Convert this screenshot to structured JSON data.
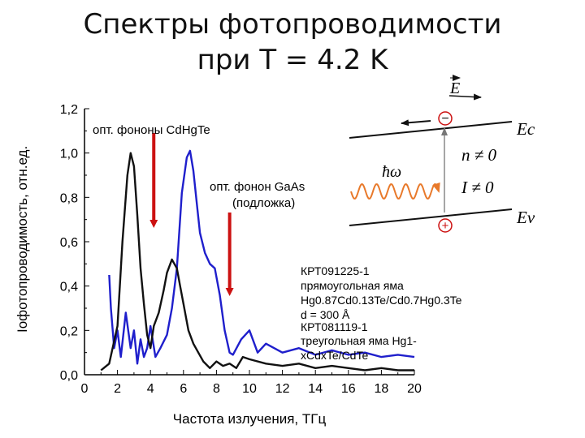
{
  "title_line1": "Спектры фотопроводимости",
  "title_line2": "при T = 4.2 K",
  "annotations": {
    "phonon_cdhgte": "опт. фононы CdHgTe",
    "phonon_gaas_1": "опт. фонон GaAs",
    "phonon_gaas_2": "(подложка)"
  },
  "legend": {
    "s1_l1": "КРТ091225-1",
    "s1_l2": "прямоугольная яма",
    "s1_formula": "Hg0.87Cd0.13Te/Cd0.7Hg0.3Te",
    "s1_d": "d = 300 Å",
    "s2_l1": "КРТ081119-1",
    "s2_l2": "треугольная яма Hg1-",
    "s2_formula": "xCdxTe/CdTe"
  },
  "inset": {
    "E": "E",
    "Ec": "Ec",
    "Ev": "Ev",
    "n": "n ≠ 0",
    "I": "I ≠ 0",
    "hw": "ħω",
    "minus": "−",
    "plus": "+"
  },
  "ylabel_garbled": "Iофотопроводимость, отн.ед.",
  "colors": {
    "blue": "#1f1fcc",
    "black": "#111111",
    "red": "#cc1111",
    "orange": "#e8792a"
  },
  "chart_data": {
    "type": "line",
    "title": "Спектры фотопроводимости при T = 4.2 K",
    "xlabel": "Частота излучения, ТГц",
    "ylabel": "",
    "xlim": [
      0,
      20
    ],
    "ylim": [
      0,
      1.2
    ],
    "x_ticks": [
      0,
      2,
      4,
      6,
      8,
      10,
      12,
      14,
      16,
      18,
      20
    ],
    "y_ticks": [
      0.0,
      0.2,
      0.4,
      0.6,
      0.8,
      1.0,
      1.2
    ],
    "y_tick_labels": [
      "0,0",
      "0,2",
      "0,4",
      "0,6",
      "0,8",
      "1,0",
      "1,2"
    ],
    "series": [
      {
        "name": "КРТ091225-1",
        "color": "blue",
        "x": [
          1.5,
          1.6,
          1.8,
          2.0,
          2.2,
          2.5,
          2.8,
          3.0,
          3.2,
          3.4,
          3.6,
          3.8,
          4.0,
          4.3,
          4.6,
          5.0,
          5.3,
          5.6,
          5.9,
          6.2,
          6.4,
          6.6,
          6.8,
          7.0,
          7.3,
          7.6,
          7.9,
          8.2,
          8.5,
          8.8,
          9.0,
          9.5,
          10.0,
          10.5,
          11.0,
          12.0,
          13.0,
          14.0,
          15.0,
          16.0,
          17.0,
          18.0,
          19.0,
          20.0
        ],
        "y": [
          0.45,
          0.3,
          0.12,
          0.2,
          0.08,
          0.28,
          0.12,
          0.2,
          0.05,
          0.16,
          0.08,
          0.12,
          0.22,
          0.08,
          0.12,
          0.18,
          0.3,
          0.48,
          0.82,
          0.98,
          1.01,
          0.92,
          0.78,
          0.64,
          0.55,
          0.5,
          0.48,
          0.36,
          0.2,
          0.1,
          0.09,
          0.16,
          0.2,
          0.1,
          0.14,
          0.1,
          0.12,
          0.09,
          0.11,
          0.09,
          0.1,
          0.08,
          0.09,
          0.08
        ]
      },
      {
        "name": "КРТ081119-1",
        "color": "black",
        "x": [
          1.0,
          1.5,
          2.0,
          2.3,
          2.6,
          2.8,
          3.0,
          3.2,
          3.4,
          3.6,
          3.8,
          4.0,
          4.2,
          4.5,
          4.8,
          5.0,
          5.3,
          5.6,
          5.8,
          6.0,
          6.3,
          6.6,
          6.9,
          7.2,
          7.6,
          8.0,
          8.4,
          8.8,
          9.2,
          9.6,
          10.0,
          11.0,
          12.0,
          13.0,
          14.0,
          15.0,
          16.0,
          17.0,
          18.0,
          19.0,
          20.0
        ],
        "y": [
          0.02,
          0.05,
          0.22,
          0.6,
          0.9,
          1.0,
          0.94,
          0.72,
          0.48,
          0.32,
          0.18,
          0.12,
          0.22,
          0.28,
          0.38,
          0.46,
          0.52,
          0.48,
          0.4,
          0.32,
          0.2,
          0.14,
          0.1,
          0.06,
          0.03,
          0.06,
          0.04,
          0.05,
          0.03,
          0.08,
          0.07,
          0.05,
          0.04,
          0.05,
          0.03,
          0.04,
          0.03,
          0.02,
          0.03,
          0.02,
          0.02
        ]
      }
    ],
    "markers": [
      {
        "x": 4.2,
        "label": "опт. фононы CdHgTe",
        "color": "red"
      },
      {
        "x": 8.8,
        "label": "опт. фонон GaAs (подложка)",
        "color": "red"
      }
    ]
  }
}
